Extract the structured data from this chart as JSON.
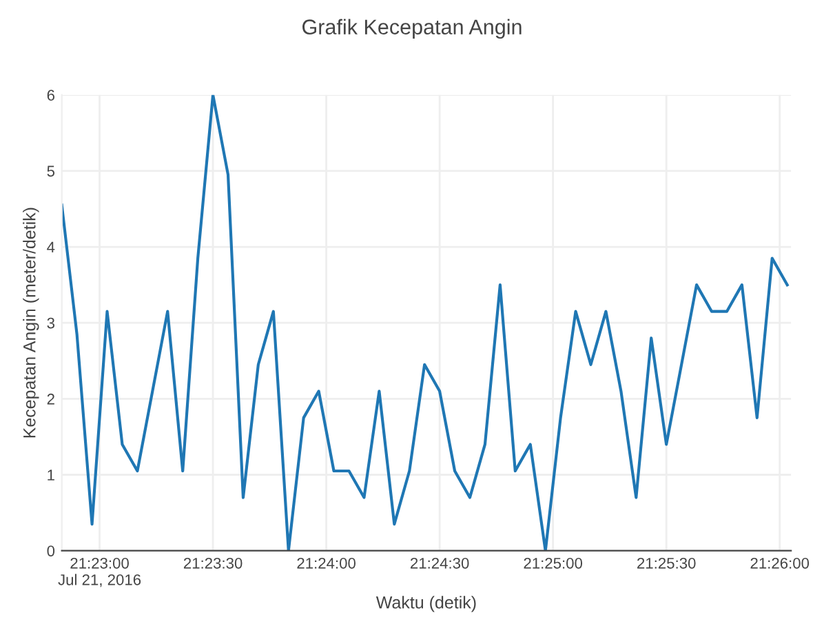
{
  "chart_data": {
    "type": "line",
    "title": "Grafik Kecepatan Angin",
    "xlabel": "Waktu (detik)",
    "ylabel": "Kecepatan Angin (meter/detik)",
    "x": [
      "2016-07-21T21:22:50",
      "2016-07-21T21:22:54",
      "2016-07-21T21:22:58",
      "2016-07-21T21:23:02",
      "2016-07-21T21:23:06",
      "2016-07-21T21:23:10",
      "2016-07-21T21:23:14",
      "2016-07-21T21:23:18",
      "2016-07-21T21:23:22",
      "2016-07-21T21:23:26",
      "2016-07-21T21:23:30",
      "2016-07-21T21:23:34",
      "2016-07-21T21:23:38",
      "2016-07-21T21:23:42",
      "2016-07-21T21:23:46",
      "2016-07-21T21:23:50",
      "2016-07-21T21:23:54",
      "2016-07-21T21:23:58",
      "2016-07-21T21:24:02",
      "2016-07-21T21:24:06",
      "2016-07-21T21:24:10",
      "2016-07-21T21:24:14",
      "2016-07-21T21:24:18",
      "2016-07-21T21:24:22",
      "2016-07-21T21:24:26",
      "2016-07-21T21:24:30",
      "2016-07-21T21:24:34",
      "2016-07-21T21:24:38",
      "2016-07-21T21:24:42",
      "2016-07-21T21:24:46",
      "2016-07-21T21:24:50",
      "2016-07-21T21:24:54",
      "2016-07-21T21:24:58",
      "2016-07-21T21:25:02",
      "2016-07-21T21:25:06",
      "2016-07-21T21:25:10",
      "2016-07-21T21:25:14",
      "2016-07-21T21:25:18",
      "2016-07-21T21:25:22",
      "2016-07-21T21:25:26",
      "2016-07-21T21:25:30",
      "2016-07-21T21:25:34",
      "2016-07-21T21:25:38",
      "2016-07-21T21:25:42",
      "2016-07-21T21:25:46",
      "2016-07-21T21:25:50",
      "2016-07-21T21:25:54",
      "2016-07-21T21:25:58",
      "2016-07-21T21:26:02"
    ],
    "series": [
      {
        "color": "#1f77b4",
        "values": [
          4.55,
          2.85,
          0.35,
          3.15,
          1.4,
          1.05,
          2.1,
          3.15,
          1.05,
          3.85,
          6.0,
          4.95,
          0.7,
          2.45,
          3.15,
          0.0,
          1.75,
          2.1,
          1.05,
          1.05,
          0.7,
          2.1,
          0.35,
          1.05,
          2.45,
          2.1,
          1.05,
          0.7,
          1.4,
          3.5,
          1.05,
          1.4,
          0.0,
          1.75,
          3.15,
          2.45,
          3.15,
          2.1,
          0.7,
          2.8,
          1.4,
          2.45,
          3.5,
          3.15,
          3.15,
          3.5,
          1.75,
          3.85,
          3.5
        ]
      }
    ],
    "xlim": [
      "2016-07-21T21:22:50",
      "2016-07-21T21:26:03"
    ],
    "xticks": [
      {
        "value": "2016-07-21T21:23:00",
        "label": "21:23:00\nJul 21, 2016"
      },
      {
        "value": "2016-07-21T21:23:30",
        "label": "21:23:30"
      },
      {
        "value": "2016-07-21T21:24:00",
        "label": "21:24:00"
      },
      {
        "value": "2016-07-21T21:24:30",
        "label": "21:24:30"
      },
      {
        "value": "2016-07-21T21:25:00",
        "label": "21:25:00"
      },
      {
        "value": "2016-07-21T21:25:30",
        "label": "21:25:30"
      },
      {
        "value": "2016-07-21T21:26:00",
        "label": "21:26:00"
      }
    ],
    "ylim": [
      0,
      6
    ],
    "yticks": [
      0,
      1,
      2,
      3,
      4,
      5,
      6
    ],
    "grid": true,
    "legend": false,
    "marker": "none",
    "line_style": "solid"
  }
}
